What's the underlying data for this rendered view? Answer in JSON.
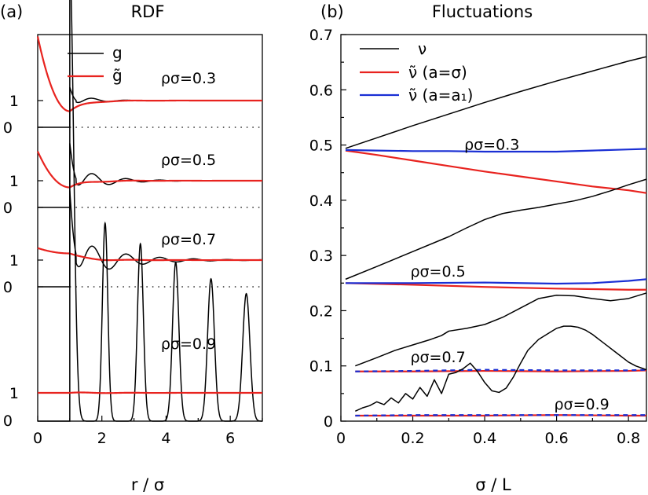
{
  "chart_data": [
    {
      "type": "line",
      "panel_label": "(a)",
      "title": "RDF",
      "xlabel": "r / σ",
      "ylabel": "",
      "xlim": [
        0,
        7
      ],
      "x_ticks": [
        "0",
        "2",
        "4",
        "6"
      ],
      "grid": false,
      "legend": {
        "placement": "top-center",
        "entries": [
          {
            "label": "g",
            "color": "#000000"
          },
          {
            "label": "g̃",
            "color": "#e8231f"
          }
        ]
      },
      "offset_panels": [
        {
          "annotation": "ρσ=0.3",
          "y_ticks": [
            "1",
            "0"
          ],
          "baseline": 0,
          "unit": 1,
          "sigma": 0.3,
          "amp": 0.25,
          "contact": 1.5,
          "hat_start": 3.4,
          "hat_contact": 0.6,
          "hat_k": 2.2,
          "osc_decay": 1.6,
          "hat_bump": 0.03
        },
        {
          "annotation": "ρσ=0.5",
          "y_ticks": [
            "1",
            "0"
          ],
          "baseline": 0,
          "unit": 1,
          "sigma": 0.5,
          "amp": 0.55,
          "contact": 2.4,
          "hat_start": 2.1,
          "hat_contact": 0.75,
          "hat_k": 2.2,
          "osc_decay": 1.1,
          "hat_bump": 0.04
        },
        {
          "annotation": "ρσ=0.7",
          "y_ticks": [
            "1",
            "0"
          ],
          "baseline": 0,
          "unit": 1,
          "sigma": 0.7,
          "amp": 0.85,
          "contact": 3.6,
          "hat_start": 1.45,
          "hat_contact": 1.25,
          "hat_k": 2.5,
          "osc_decay": 0.75,
          "hat_bump": 0.04
        },
        {
          "annotation": "ρσ=0.9",
          "y_ticks": [
            "1",
            "0"
          ],
          "baseline": 0,
          "unit": 1,
          "sigma": 0.9,
          "amp": 6.5,
          "contact": 16,
          "hat_start": 1.0,
          "hat_contact": 1.0,
          "hat_k": 3.0,
          "osc_decay": 4.0,
          "hat_bump": 0.02
        }
      ]
    },
    {
      "type": "line",
      "panel_label": "(b)",
      "title": "Fluctuations",
      "xlabel": "σ / L",
      "ylabel": "",
      "xlim": [
        0,
        0.85
      ],
      "ylim": [
        0,
        0.7
      ],
      "x_ticks": [
        0,
        0.2,
        0.4,
        0.6,
        0.8
      ],
      "x_tick_labels": [
        "0",
        "0.2",
        "0.4",
        "0.6",
        "0.8"
      ],
      "y_ticks": [
        0,
        0.1,
        0.2,
        0.3,
        0.4,
        0.5,
        0.6,
        0.7
      ],
      "y_tick_labels": [
        "0",
        "0.1",
        "0.2",
        "0.3",
        "0.4",
        "0.5",
        "0.6",
        "0.7"
      ],
      "grid": false,
      "legend": {
        "placement": "top-left",
        "entries": [
          {
            "label": "ν",
            "color": "#000000"
          },
          {
            "label": "ν̃ (a=σ)",
            "color": "#e8231f"
          },
          {
            "label": "ν̃ (a=a₁)",
            "color": "#1a2fd4"
          }
        ]
      },
      "annotations": [
        {
          "text": "ρσ=0.3",
          "x": 0.42,
          "y": 0.5
        },
        {
          "text": "ρσ=0.5",
          "x": 0.27,
          "y": 0.27
        },
        {
          "text": "ρσ=0.7",
          "x": 0.27,
          "y": 0.115
        },
        {
          "text": "ρσ=0.9",
          "x": 0.67,
          "y": 0.03
        }
      ],
      "series": [
        {
          "name": "ν",
          "group": "ρσ=0.3",
          "color": "#000000",
          "x": [
            0.013,
            0.1,
            0.2,
            0.3,
            0.4,
            0.5,
            0.6,
            0.7,
            0.8,
            0.85
          ],
          "y": [
            0.494,
            0.513,
            0.535,
            0.556,
            0.577,
            0.597,
            0.616,
            0.634,
            0.652,
            0.66
          ]
        },
        {
          "name": "ν̃ (a=σ)",
          "group": "ρσ=0.3",
          "color": "#e8231f",
          "x": [
            0.013,
            0.1,
            0.2,
            0.3,
            0.4,
            0.5,
            0.6,
            0.7,
            0.8,
            0.85
          ],
          "y": [
            0.49,
            0.482,
            0.472,
            0.462,
            0.452,
            0.443,
            0.434,
            0.425,
            0.418,
            0.413
          ]
        },
        {
          "name": "ν̃ (a=a₁)",
          "group": "ρσ=0.3",
          "color": "#1a2fd4",
          "x": [
            0.013,
            0.1,
            0.2,
            0.3,
            0.4,
            0.5,
            0.6,
            0.7,
            0.8,
            0.85
          ],
          "y": [
            0.491,
            0.49,
            0.489,
            0.489,
            0.488,
            0.488,
            0.488,
            0.49,
            0.492,
            0.493
          ]
        },
        {
          "name": "ν",
          "group": "ρσ=0.5",
          "color": "#000000",
          "x": [
            0.013,
            0.1,
            0.2,
            0.3,
            0.35,
            0.4,
            0.45,
            0.5,
            0.55,
            0.6,
            0.65,
            0.7,
            0.75,
            0.8,
            0.85
          ],
          "y": [
            0.257,
            0.28,
            0.307,
            0.334,
            0.35,
            0.365,
            0.376,
            0.382,
            0.387,
            0.393,
            0.399,
            0.407,
            0.417,
            0.428,
            0.438
          ]
        },
        {
          "name": "ν̃ (a=σ)",
          "group": "ρσ=0.5",
          "color": "#e8231f",
          "x": [
            0.013,
            0.2,
            0.4,
            0.6,
            0.8,
            0.85
          ],
          "y": [
            0.25,
            0.247,
            0.243,
            0.24,
            0.238,
            0.238
          ]
        },
        {
          "name": "ν̃ (a=a₁)",
          "group": "ρσ=0.5",
          "color": "#1a2fd4",
          "x": [
            0.013,
            0.2,
            0.4,
            0.6,
            0.7,
            0.8,
            0.85
          ],
          "y": [
            0.25,
            0.25,
            0.251,
            0.249,
            0.25,
            0.254,
            0.257
          ]
        },
        {
          "name": "ν",
          "group": "ρσ=0.7",
          "color": "#000000",
          "x": [
            0.04,
            0.1,
            0.15,
            0.2,
            0.25,
            0.28,
            0.3,
            0.35,
            0.4,
            0.45,
            0.5,
            0.55,
            0.6,
            0.65,
            0.7,
            0.75,
            0.8,
            0.85
          ],
          "y": [
            0.1,
            0.115,
            0.128,
            0.138,
            0.148,
            0.155,
            0.163,
            0.168,
            0.175,
            0.188,
            0.205,
            0.222,
            0.228,
            0.227,
            0.222,
            0.218,
            0.222,
            0.232
          ]
        },
        {
          "name": "ν̃ (a=σ)",
          "group": "ρσ=0.7",
          "color": "#e8231f",
          "x": [
            0.04,
            0.2,
            0.4,
            0.6,
            0.8,
            0.85
          ],
          "y": [
            0.09,
            0.09,
            0.091,
            0.09,
            0.091,
            0.092
          ]
        },
        {
          "name": "ν̃ (a=a₁)",
          "group": "ρσ=0.7",
          "color": "#1a2fd4",
          "dashed": true,
          "x": [
            0.04,
            0.2,
            0.4,
            0.6,
            0.8,
            0.85
          ],
          "y": [
            0.09,
            0.091,
            0.093,
            0.092,
            0.092,
            0.093
          ]
        },
        {
          "name": "ν",
          "group": "ρσ=0.9",
          "color": "#000000",
          "x": [
            0.04,
            0.06,
            0.08,
            0.1,
            0.12,
            0.14,
            0.16,
            0.18,
            0.2,
            0.22,
            0.24,
            0.26,
            0.28,
            0.3,
            0.32,
            0.34,
            0.36,
            0.38,
            0.4,
            0.42,
            0.44,
            0.46,
            0.48,
            0.5,
            0.52,
            0.55,
            0.58,
            0.6,
            0.62,
            0.64,
            0.66,
            0.68,
            0.7,
            0.72,
            0.74,
            0.76,
            0.78,
            0.8,
            0.82,
            0.85
          ],
          "y": [
            0.018,
            0.024,
            0.028,
            0.035,
            0.03,
            0.042,
            0.033,
            0.05,
            0.04,
            0.061,
            0.045,
            0.075,
            0.05,
            0.085,
            0.088,
            0.095,
            0.105,
            0.09,
            0.07,
            0.055,
            0.052,
            0.06,
            0.08,
            0.105,
            0.128,
            0.148,
            0.16,
            0.168,
            0.172,
            0.172,
            0.17,
            0.165,
            0.157,
            0.147,
            0.137,
            0.127,
            0.117,
            0.107,
            0.1,
            0.093
          ]
        },
        {
          "name": "ν̃ (a=σ)",
          "group": "ρσ=0.9",
          "color": "#e8231f",
          "x": [
            0.04,
            0.2,
            0.4,
            0.6,
            0.8,
            0.85
          ],
          "y": [
            0.01,
            0.01,
            0.01,
            0.011,
            0.01,
            0.01
          ]
        },
        {
          "name": "ν̃ (a=a₁)",
          "group": "ρσ=0.9",
          "color": "#1a2fd4",
          "dashed": true,
          "x": [
            0.04,
            0.2,
            0.4,
            0.6,
            0.8,
            0.85
          ],
          "y": [
            0.01,
            0.011,
            0.011,
            0.011,
            0.011,
            0.011
          ]
        }
      ]
    }
  ]
}
